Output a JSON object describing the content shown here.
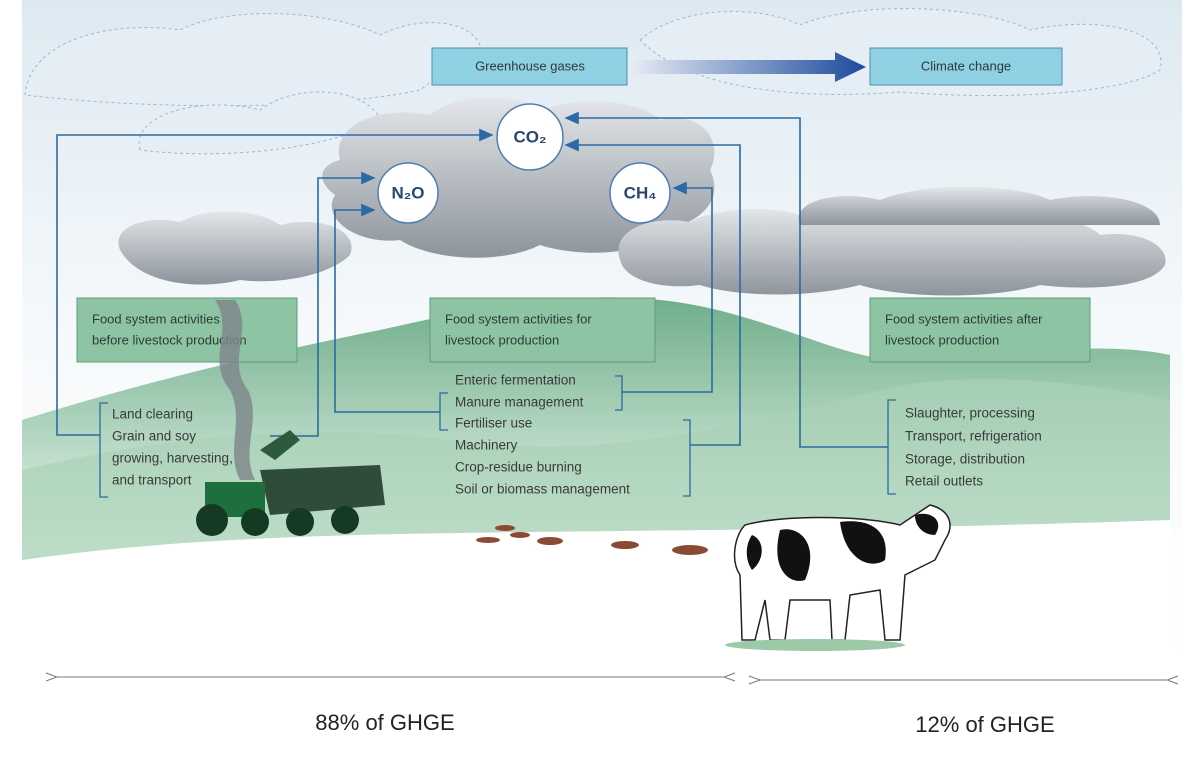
{
  "header": {
    "greenhouse_gases": "Greenhouse gases",
    "climate_change": "Climate change"
  },
  "gases": [
    "CO₂",
    "N₂O",
    "CH₄"
  ],
  "stages": [
    {
      "title_lines": [
        "Food system activities",
        "before livestock production"
      ],
      "activities": [
        "Land clearing",
        "Grain and soy",
        "growing, harvesting,",
        "and transport"
      ]
    },
    {
      "title_lines": [
        "Food system activities for",
        "livestock production"
      ],
      "activities": [
        "Enteric fermentation",
        "Manure management",
        "Fertiliser use",
        "Machinery",
        "Crop-residue burning",
        "Soil or biomass management"
      ]
    },
    {
      "title_lines": [
        "Food system activities after",
        "livestock production"
      ],
      "activities": [
        "Slaughter, processing",
        "Transport, refrigeration",
        "Storage, distribution",
        "Retail outlets"
      ]
    }
  ],
  "shares": [
    "88% of GHGE",
    "12% of GHGE"
  ]
}
